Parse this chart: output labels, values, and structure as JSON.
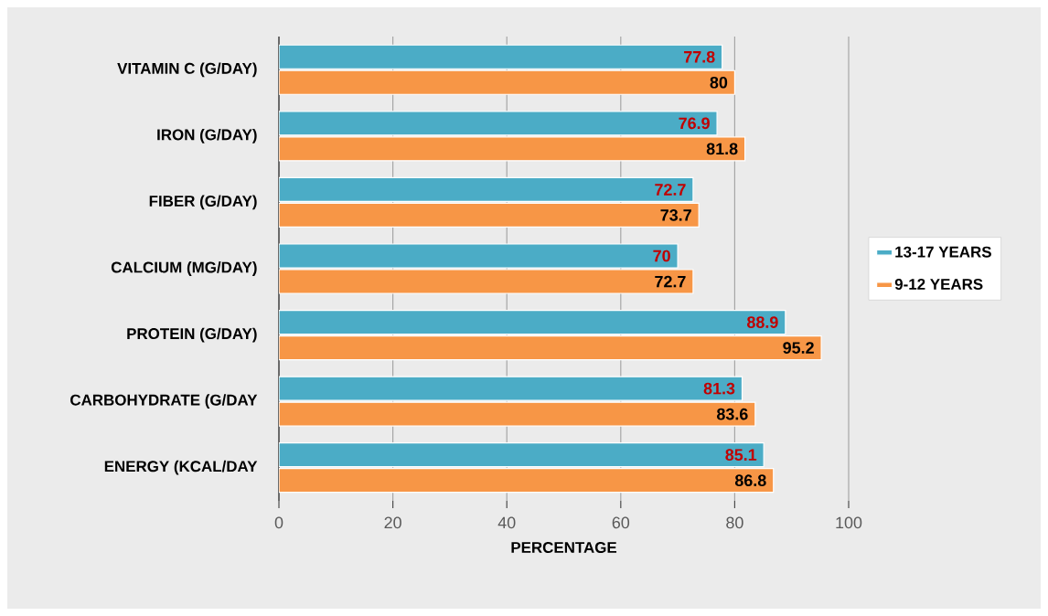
{
  "chart_data": {
    "type": "bar",
    "orientation": "horizontal",
    "xlabel": "PERCENTAGE",
    "categories": [
      "VITAMIN C (G/DAY)",
      "IRON (G/DAY)",
      "FIBER (G/DAY)",
      "CALCIUM (MG/DAY)",
      "PROTEIN (G/DAY)",
      "CARBOHYDRATE (G/DAY",
      "ENERGY (KCAL/DAY"
    ],
    "series": [
      {
        "name": "13-17 YEARS",
        "color": "#4bacc6",
        "values": [
          77.8,
          76.9,
          72.7,
          70,
          88.9,
          81.3,
          85.1
        ]
      },
      {
        "name": "9-12 YEARS",
        "color": "#f79646",
        "values": [
          80,
          81.8,
          73.7,
          72.7,
          95.2,
          83.6,
          86.8
        ]
      }
    ],
    "xlim": [
      0,
      100
    ],
    "xticks": [
      0,
      20,
      40,
      60,
      80,
      100
    ],
    "grid": "x",
    "legend": "right",
    "data_labels": true
  }
}
